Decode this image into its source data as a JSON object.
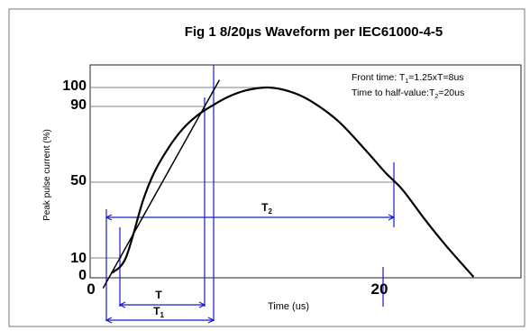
{
  "chart_data": {
    "type": "line",
    "title": "Fig 1 8/20µs Waveform per IEC61000-4-5",
    "xlabel": "Time (us)",
    "ylabel": "Peak pulse current (%)",
    "xlim": [
      0,
      27
    ],
    "ylim": [
      0,
      100
    ],
    "x_ticks": [
      "0",
      "20"
    ],
    "y_ticks": [
      "0",
      "10",
      "50",
      "90",
      "100"
    ],
    "series": [
      {
        "x": [
          1.0,
          2.0,
          3.2,
          4.0,
          5.0,
          6.0,
          7.0,
          8.0,
          9.2,
          10.5,
          12.0,
          13.5,
          15.0,
          17.0,
          19.0,
          20.3,
          21.5,
          23.0,
          24.5,
          26.5
        ],
        "y": [
          2,
          10,
          40,
          55,
          68,
          78,
          85,
          90,
          95,
          98.5,
          100,
          98,
          93,
          82,
          66,
          55,
          46,
          31,
          17,
          0
        ]
      }
    ],
    "front_line": {
      "x": [
        0.4,
        8.6
      ],
      "y": [
        -6,
        104
      ]
    },
    "annotations": {
      "front_time": "Front time: T",
      "front_time_sub": "1",
      "front_time_rest": "=1.25xT=8us",
      "half_time": "Time to half-value:T",
      "half_time_sub": "2",
      "half_time_rest": "=20us"
    },
    "markers": {
      "T": "T",
      "T1": "T",
      "T1_sub": "1",
      "T2": "T",
      "T2_sub": "2"
    },
    "colors": {
      "curve": "#000000",
      "reference": "#1a1acc",
      "grid": "#808080"
    }
  }
}
